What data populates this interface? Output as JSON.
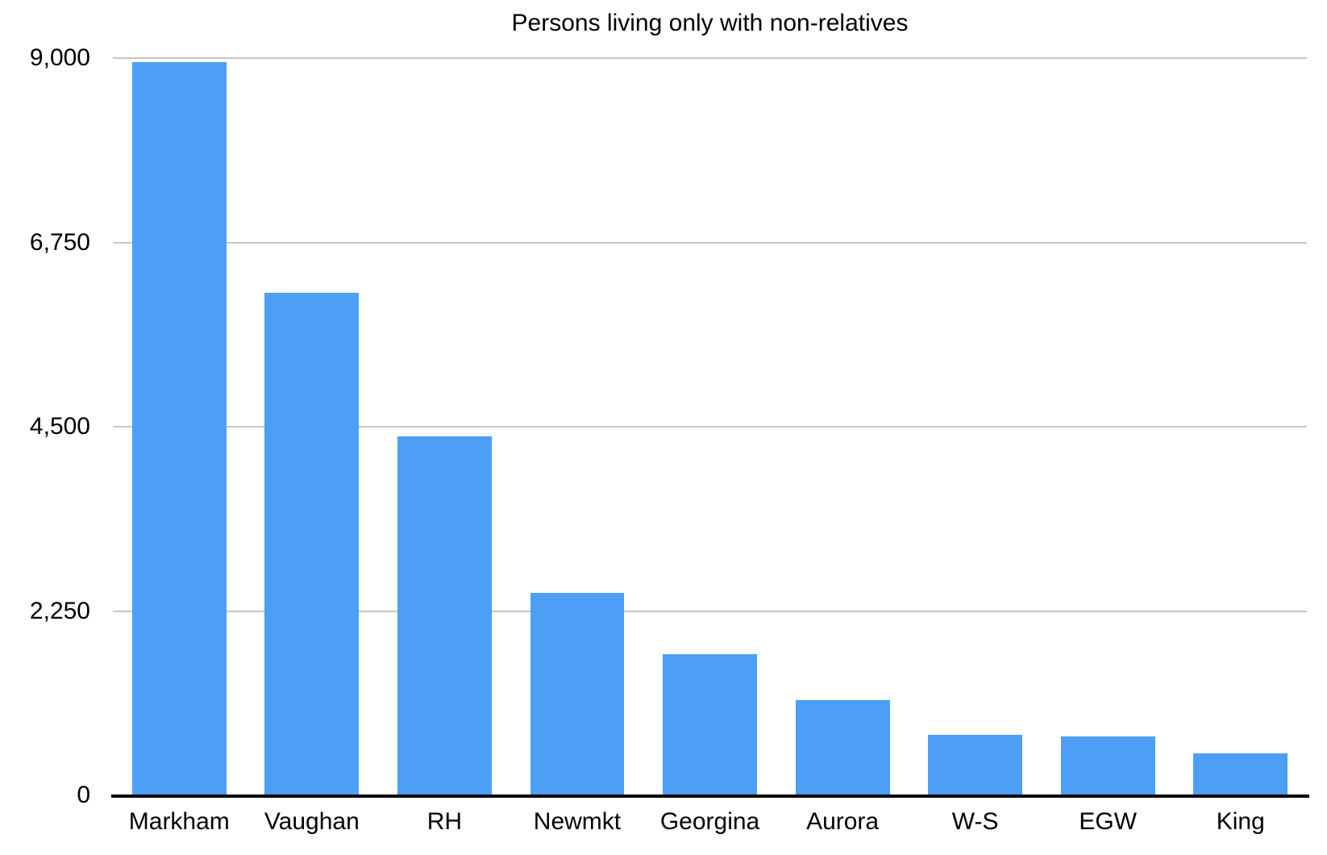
{
  "colors": {
    "bar": "#4c9ff4",
    "gridline": "#c6c6c6",
    "axis": "#000000",
    "text": "#000000",
    "background": "#ffffff"
  },
  "chart_data": {
    "type": "bar",
    "title": "Persons living only with non-relatives",
    "categories": [
      "Markham",
      "Vaughan",
      "RH",
      "Newmkt",
      "Georgina",
      "Aurora",
      "W-S",
      "EGW",
      "King"
    ],
    "values": [
      8950,
      6130,
      4380,
      2470,
      1720,
      1160,
      740,
      720,
      510
    ],
    "xlabel": "",
    "ylabel": "",
    "ylim": [
      0,
      9000
    ],
    "yticks": [
      0,
      2250,
      4500,
      6750,
      9000
    ],
    "ytick_labels": [
      "0",
      "2,250",
      "4,500",
      "6,750",
      "9,000"
    ],
    "grid": true,
    "legend_position": "none"
  }
}
